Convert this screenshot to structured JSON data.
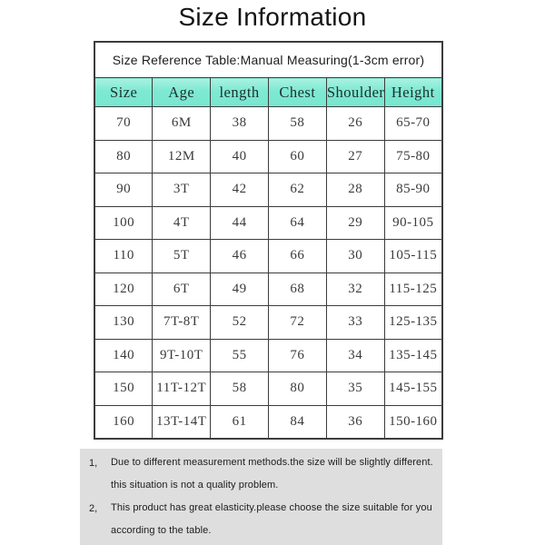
{
  "title": "Size Information",
  "table": {
    "caption": "Size Reference Table:Manual Measuring(1-3cm error)",
    "columns": [
      "Size",
      "Age",
      "length",
      "Chest",
      "Shoulder",
      "Height"
    ],
    "rows": [
      [
        "70",
        "6M",
        "38",
        "58",
        "26",
        "65-70"
      ],
      [
        "80",
        "12M",
        "40",
        "60",
        "27",
        "75-80"
      ],
      [
        "90",
        "3T",
        "42",
        "62",
        "28",
        "85-90"
      ],
      [
        "100",
        "4T",
        "44",
        "64",
        "29",
        "90-105"
      ],
      [
        "110",
        "5T",
        "46",
        "66",
        "30",
        "105-115"
      ],
      [
        "120",
        "6T",
        "49",
        "68",
        "32",
        "115-125"
      ],
      [
        "130",
        "7T-8T",
        "52",
        "72",
        "33",
        "125-135"
      ],
      [
        "140",
        "9T-10T",
        "55",
        "76",
        "34",
        "135-145"
      ],
      [
        "150",
        "11T-12T",
        "58",
        "80",
        "35",
        "145-155"
      ],
      [
        "160",
        "13T-14T",
        "61",
        "84",
        "36",
        "150-160"
      ]
    ]
  },
  "notes": [
    {
      "marker": "1、",
      "lines": [
        "Due to different measurement methods.the size will be slightly different.",
        "this situation is not a quality problem."
      ]
    },
    {
      "marker": "2、",
      "lines": [
        "This product has great elasticity.please choose the size suitable for you",
        "according to the table."
      ]
    }
  ],
  "colors": {
    "header_bg": "#7de9d2",
    "header_bg_light": "#a9f1e1",
    "border": "#3c3c3c",
    "notes_bg": "#dedede",
    "text": "#3a3a3a"
  }
}
